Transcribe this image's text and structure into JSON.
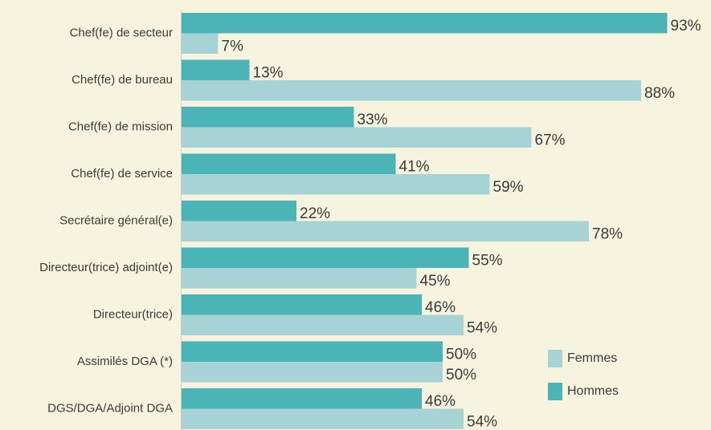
{
  "chart_data": {
    "type": "bar",
    "orientation": "horizontal",
    "categories": [
      "Chef(fe) de secteur",
      "Chef(fe) de bureau",
      "Chef(fe) de mission",
      "Chef(fe) de service",
      "Secrétaire général(e)",
      "Directeur(trice) adjoint(e)",
      "Directeur(trice)",
      "Assimilés DGA (*)",
      "DGS/DGA/Adjoint DGA"
    ],
    "series": [
      {
        "name": "Hommes",
        "color": "#4ab4b7",
        "values": [
          93,
          13,
          33,
          41,
          22,
          55,
          46,
          50,
          46
        ],
        "value_labels": [
          "93%",
          "13%",
          "33%",
          "41%",
          "22%",
          "55%",
          "46%",
          "50%",
          "46%"
        ]
      },
      {
        "name": "Femmes",
        "color": "#a7d3d6",
        "values": [
          7,
          88,
          67,
          59,
          78,
          45,
          54,
          50,
          54
        ],
        "value_labels": [
          "7%",
          "88%",
          "67%",
          "59%",
          "78%",
          "45%",
          "54%",
          "50%",
          "54%"
        ]
      }
    ],
    "xlim": [
      0,
      100
    ],
    "legend": "lower right"
  }
}
